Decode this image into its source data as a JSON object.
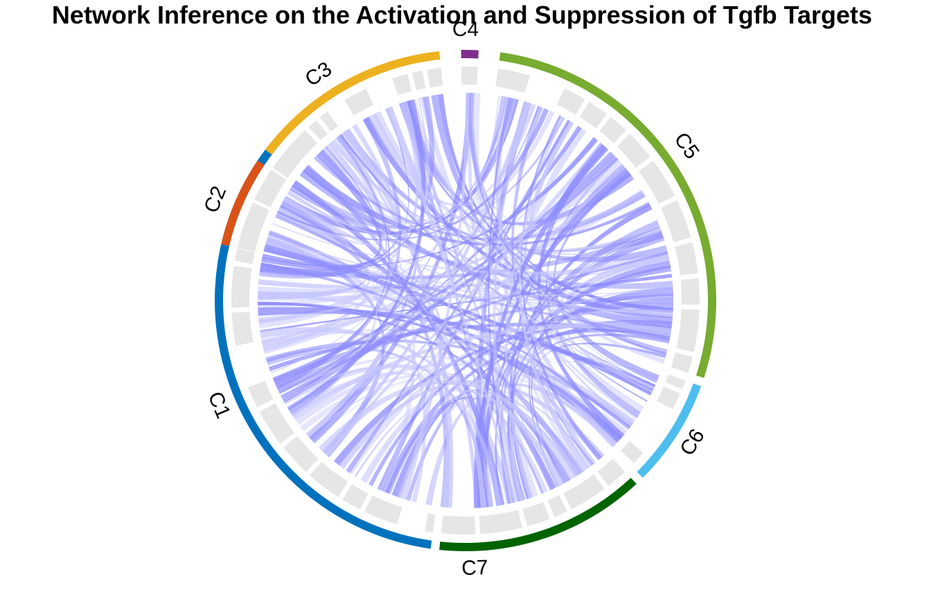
{
  "title": "Network Inference on the Activation and Suppression of Tgfb Targets",
  "sectors": [
    {
      "name": "C1",
      "color": "#0072BD"
    },
    {
      "name": "C7",
      "color": "#006400"
    },
    {
      "name": "C6",
      "color": "#4DBEEE"
    },
    {
      "name": "C5",
      "color": "#77AC30"
    },
    {
      "name": "C4",
      "color": "#7E2F8E"
    },
    {
      "name": "C3",
      "color": "#EDB120"
    },
    {
      "name": "C2",
      "color": "#D95319"
    }
  ],
  "colors": {
    "link_light": "#c8c8ff",
    "link_dark": "#8c8cff",
    "target_track": "#e6e6e6"
  }
}
